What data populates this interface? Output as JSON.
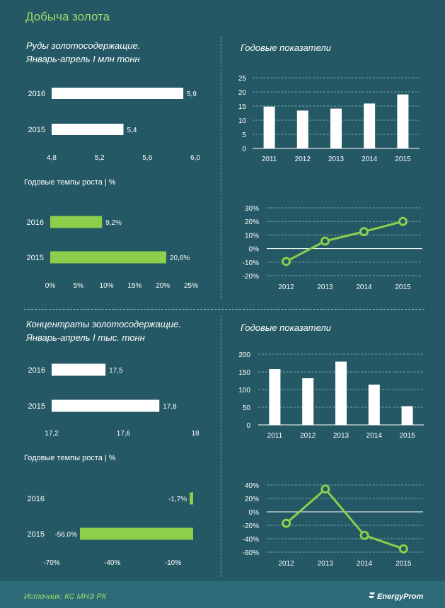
{
  "title": "Добыча золота",
  "footer": {
    "source": "Источник: КС МНЭ РК",
    "brand": "EnergyProm"
  },
  "section1": {
    "left_title_line1": "Руды золотосодержащие.",
    "left_title_line2": "Январь-апрель I млн тонн",
    "right_title": "Годовые показатели",
    "growth_title": "Годовые темпы роста  | %"
  },
  "section2": {
    "left_title_line1": "Концентраты золотосодержащие.",
    "left_title_line2": "Январь-апрель I тыс. тонн",
    "right_title": "Годовые показатели",
    "growth_title": "Годовые темпы роста | %"
  },
  "colors": {
    "background": "#245864",
    "bar_white": "#ffffff",
    "bar_green": "#8ccf4d",
    "grid": "#6fa3ad"
  },
  "chart_data": [
    {
      "id": "ore_janapr",
      "type": "bar",
      "orientation": "horizontal",
      "categories": [
        "2016",
        "2015"
      ],
      "values": [
        5.9,
        5.4
      ],
      "labels": [
        "5,9",
        "5,4"
      ],
      "xlim": [
        4.8,
        6.0
      ],
      "ticks": [
        4.8,
        5.2,
        5.6,
        6.0
      ],
      "tick_labels": [
        "4,8",
        "5,2",
        "5,6",
        "6,0"
      ],
      "color": "white"
    },
    {
      "id": "ore_annual",
      "type": "bar",
      "categories": [
        "2011",
        "2012",
        "2013",
        "2014",
        "2015"
      ],
      "values": [
        14.8,
        13.4,
        14.1,
        15.9,
        19.1
      ],
      "ylim": [
        0,
        25
      ],
      "ticks": [
        0,
        5,
        10,
        15,
        20,
        25
      ],
      "tick_labels": [
        "0",
        "5",
        "10",
        "15",
        "20",
        "25"
      ],
      "grid": true,
      "color": "white"
    },
    {
      "id": "ore_growth",
      "type": "bar",
      "orientation": "horizontal",
      "categories": [
        "2016",
        "2015"
      ],
      "values": [
        9.2,
        20.6
      ],
      "labels": [
        "9,2%",
        "20,6%"
      ],
      "xlim": [
        0,
        25
      ],
      "ticks": [
        0,
        5,
        10,
        15,
        20,
        25
      ],
      "tick_labels": [
        "0%",
        "5%",
        "10%",
        "15%",
        "20%",
        "25%"
      ],
      "color": "green"
    },
    {
      "id": "ore_growth_annual",
      "type": "line",
      "categories": [
        "2012",
        "2013",
        "2014",
        "2015"
      ],
      "values": [
        -9.5,
        5.5,
        12.5,
        20
      ],
      "ylim": [
        -20,
        30
      ],
      "ticks": [
        -20,
        -10,
        0,
        10,
        20,
        30
      ],
      "tick_labels": [
        "-20%",
        "-10%",
        "0%",
        "10%",
        "20%",
        "30%"
      ],
      "grid": true,
      "color": "green"
    },
    {
      "id": "conc_janapr",
      "type": "bar",
      "orientation": "horizontal",
      "categories": [
        "2016",
        "2015"
      ],
      "values": [
        17.5,
        17.8
      ],
      "labels": [
        "17,5",
        "17,8"
      ],
      "xlim": [
        17.2,
        18.0
      ],
      "ticks": [
        17.2,
        17.6,
        18.0
      ],
      "tick_labels": [
        "17,2",
        "17,6",
        "18"
      ],
      "color": "white"
    },
    {
      "id": "conc_annual",
      "type": "bar",
      "categories": [
        "2011",
        "2012",
        "2013",
        "2014",
        "2015"
      ],
      "values": [
        158,
        132,
        179,
        114,
        53
      ],
      "ylim": [
        0,
        200
      ],
      "ticks": [
        0,
        50,
        100,
        150,
        200
      ],
      "tick_labels": [
        "0",
        "50",
        "100",
        "150",
        "200"
      ],
      "grid": true,
      "color": "white"
    },
    {
      "id": "conc_growth",
      "type": "bar",
      "orientation": "horizontal",
      "categories": [
        "2016",
        "2015"
      ],
      "values": [
        -1.7,
        -56.0
      ],
      "labels": [
        "-1,7%",
        "-56,0%"
      ],
      "xlim": [
        -70,
        0
      ],
      "ticks": [
        -70,
        -40,
        -10
      ],
      "tick_labels": [
        "-70%",
        "-40%",
        "-10%"
      ],
      "color": "green"
    },
    {
      "id": "conc_growth_annual",
      "type": "line",
      "categories": [
        "2012",
        "2013",
        "2014",
        "2015"
      ],
      "values": [
        -17,
        34,
        -35,
        -55
      ],
      "ylim": [
        -60,
        40
      ],
      "ticks": [
        -60,
        -40,
        -20,
        0,
        20,
        40
      ],
      "tick_labels": [
        "-60%",
        "-40%",
        "-20%",
        "0%",
        "20%",
        "40%"
      ],
      "grid": true,
      "color": "green"
    }
  ]
}
